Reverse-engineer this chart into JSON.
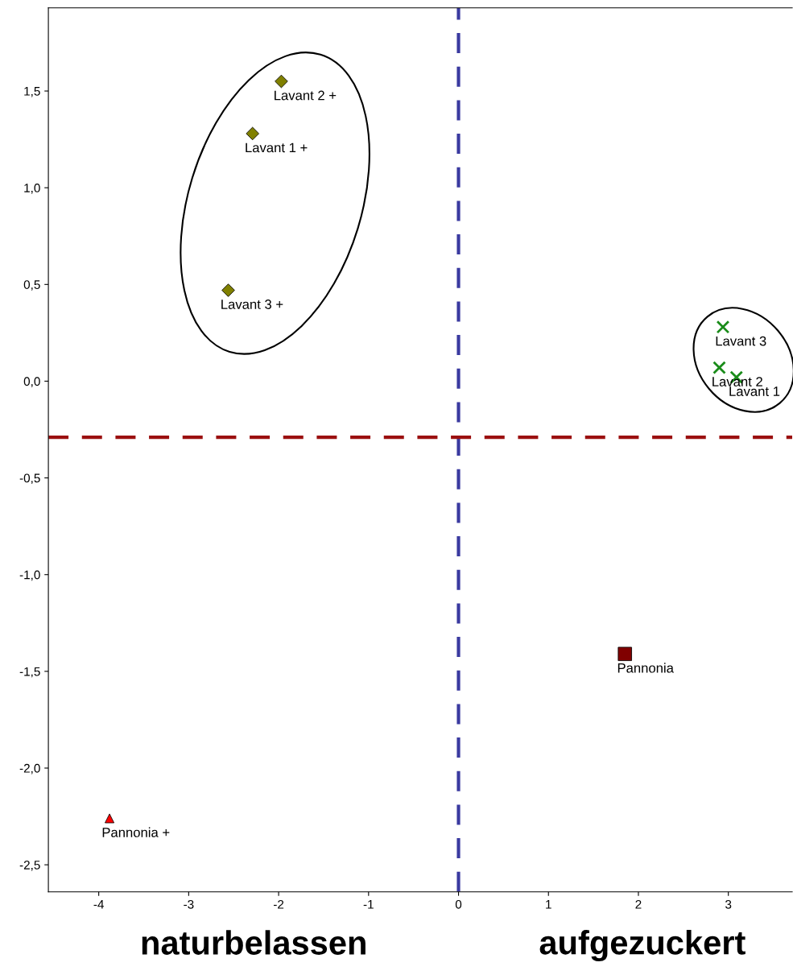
{
  "chart_data": {
    "type": "scatter",
    "xlim": [
      -4.56,
      3.71
    ],
    "ylim": [
      -2.64,
      1.93
    ],
    "xticks": [
      -4,
      -3,
      -2,
      -1,
      0,
      1,
      2,
      3
    ],
    "yticks": [
      {
        "value": -2.5,
        "label": "-2,5"
      },
      {
        "value": -2.0,
        "label": "-2,0"
      },
      {
        "value": -1.5,
        "label": "-1,5"
      },
      {
        "value": -1.0,
        "label": "-1,0"
      },
      {
        "value": -0.5,
        "label": "-0,5"
      },
      {
        "value": 0.0,
        "label": "0,0"
      },
      {
        "value": 0.5,
        "label": "0,5"
      },
      {
        "value": 1.0,
        "label": "1,0"
      },
      {
        "value": 1.5,
        "label": "1,5"
      }
    ],
    "grid": false,
    "series": [
      {
        "color": "#808000",
        "marker": "diamond",
        "x": [
          -1.97,
          -2.29,
          -2.56
        ],
        "values": [
          1.55,
          1.28,
          0.47
        ]
      },
      {
        "color": "#1a8c1a",
        "marker": "cross",
        "x": [
          2.94,
          2.9,
          3.09
        ],
        "values": [
          0.28,
          0.07,
          0.02
        ]
      },
      {
        "color": "#800000",
        "marker": "square",
        "x": [
          1.85
        ],
        "values": [
          -1.41
        ]
      },
      {
        "color": "#ff0000",
        "marker": "triangle",
        "x": [
          -3.88
        ],
        "values": [
          -2.26
        ]
      }
    ],
    "ref_lines": [
      {
        "axis": "x",
        "value": 0,
        "color": "#3a3aa0",
        "line_style": "dashed"
      },
      {
        "axis": "y",
        "value": -0.29,
        "color": "#9b1010",
        "line_style": "dashed"
      }
    ],
    "annotations": [
      {
        "text": "Lavant 2 +",
        "x": -1.97,
        "y": 1.55
      },
      {
        "text": "Lavant 1 +",
        "x": -2.29,
        "y": 1.28
      },
      {
        "text": "Lavant 3 +",
        "x": -2.56,
        "y": 0.47
      },
      {
        "text": "Lavant 3",
        "x": 2.94,
        "y": 0.28
      },
      {
        "text": "Lavant 2",
        "x": 2.9,
        "y": 0.07
      },
      {
        "text": "Lavant 1",
        "x": 3.09,
        "y": 0.02
      },
      {
        "text": "Pannonia",
        "x": 1.85,
        "y": -1.41
      },
      {
        "text": "Pannonia +",
        "x": -3.88,
        "y": -2.26
      },
      "naturbelassen",
      "aufgezuckert"
    ]
  }
}
